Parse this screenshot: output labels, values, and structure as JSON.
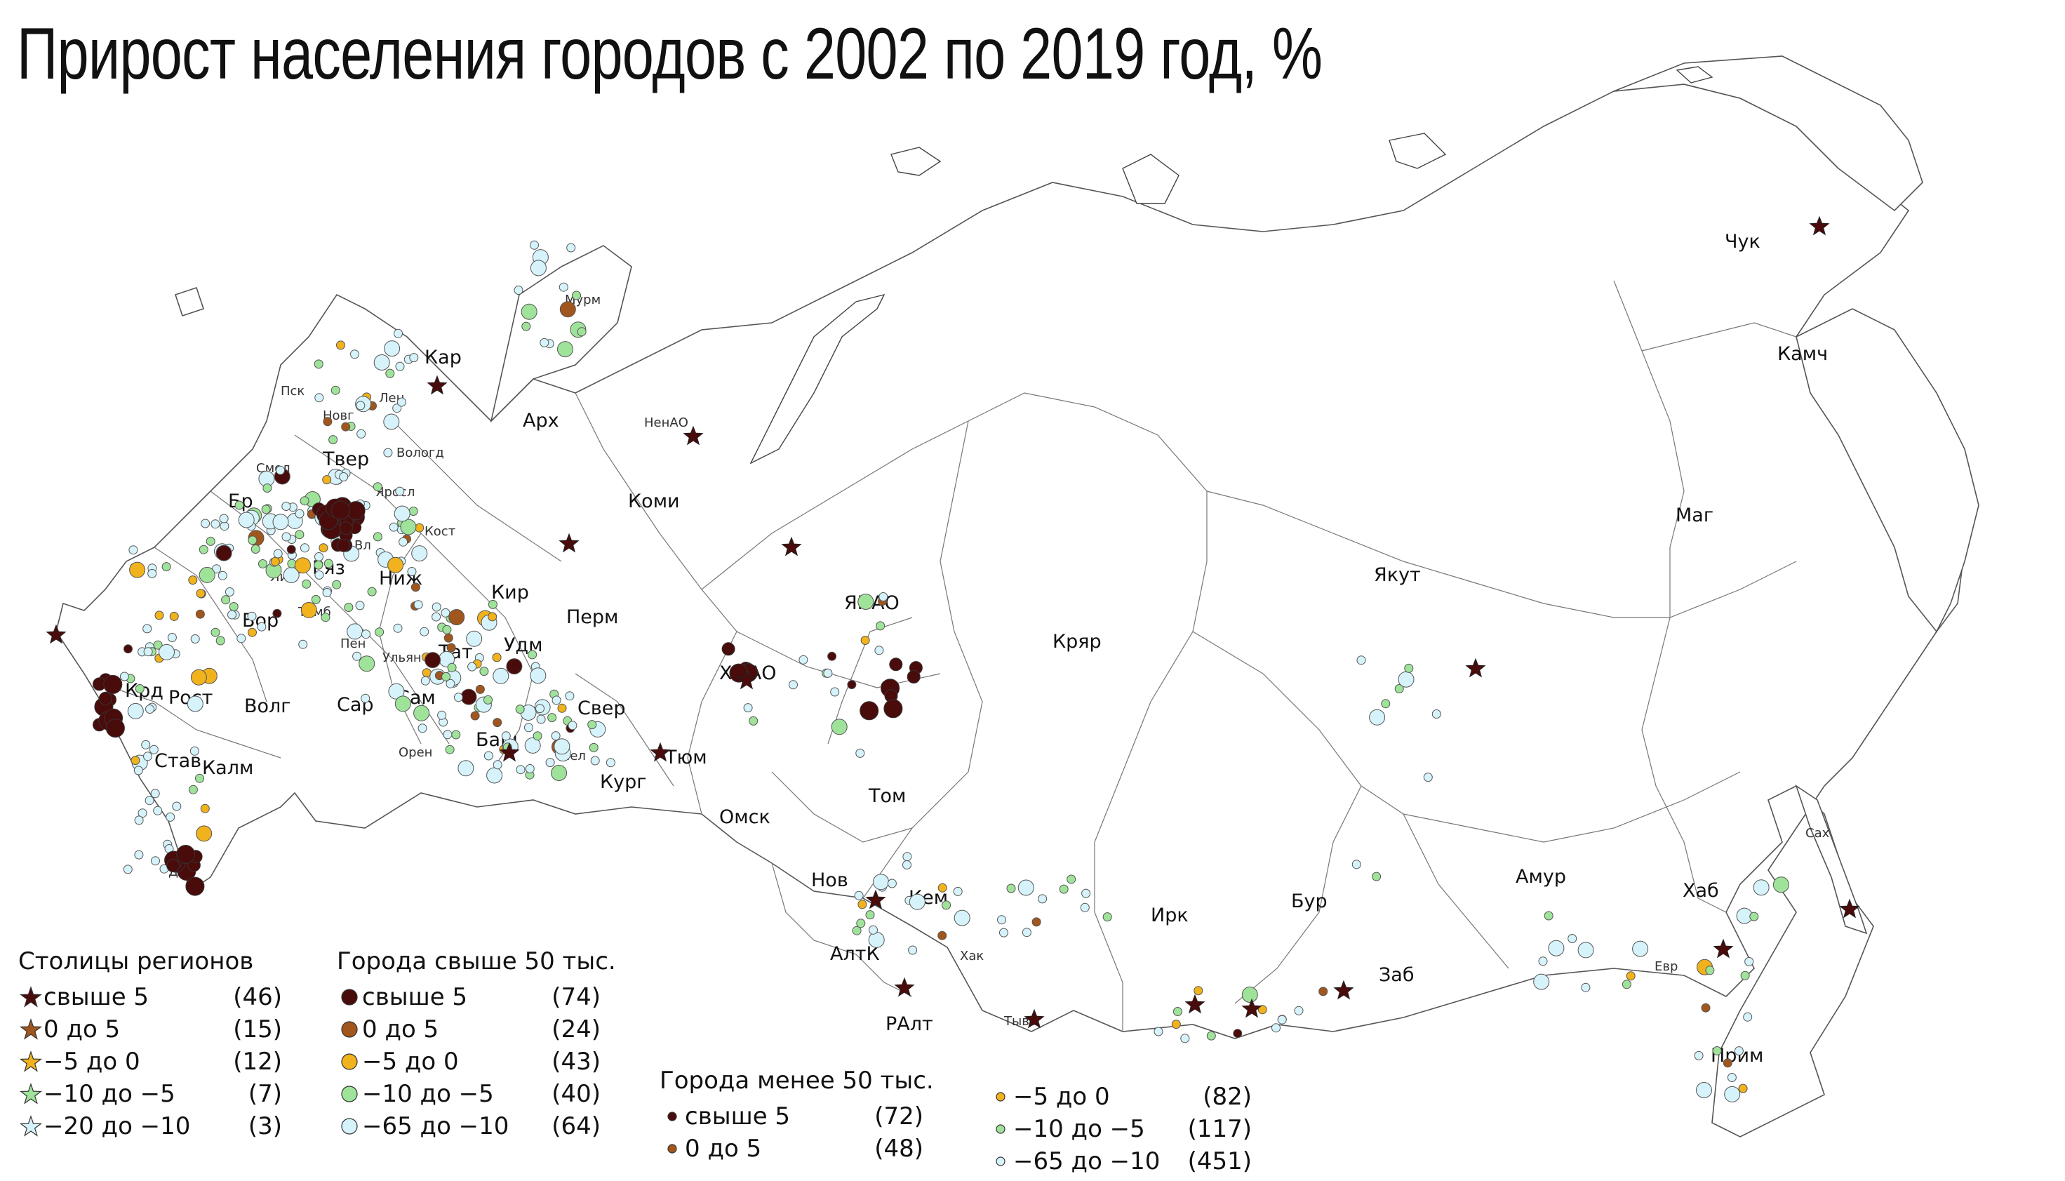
{
  "title": "Прирост населения городов с 2002 по 2019 год, %",
  "colors": {
    "c1": "#4a0b0b",
    "c2": "#a0561c",
    "c3": "#f0b21d",
    "c4": "#9fe39a",
    "c5": "#d6f3fb"
  },
  "regions": [
    {
      "label": "Мурм"
    },
    {
      "label": "Кар"
    },
    {
      "label": "Лен"
    },
    {
      "label": "Пск"
    },
    {
      "label": "Новг"
    },
    {
      "label": "Арх"
    },
    {
      "label": "НенАО"
    },
    {
      "label": "Вологд"
    },
    {
      "label": "Твер"
    },
    {
      "label": "Смол"
    },
    {
      "label": "Яросл"
    },
    {
      "label": "Кост"
    },
    {
      "label": "Бр"
    },
    {
      "label": "Ряз"
    },
    {
      "label": "Вл"
    },
    {
      "label": "Ниж"
    },
    {
      "label": "Кир"
    },
    {
      "label": "Коми"
    },
    {
      "label": "Лип"
    },
    {
      "label": "Тамб"
    },
    {
      "label": "Вор"
    },
    {
      "label": "Пен"
    },
    {
      "label": "Ульян"
    },
    {
      "label": "Тат"
    },
    {
      "label": "Удм"
    },
    {
      "label": "Перм"
    },
    {
      "label": "Сам"
    },
    {
      "label": "Сар"
    },
    {
      "label": "Крд"
    },
    {
      "label": "Рост"
    },
    {
      "label": "Волг"
    },
    {
      "label": "Став"
    },
    {
      "label": "Калм"
    },
    {
      "label": "Даг"
    },
    {
      "label": "Баш"
    },
    {
      "label": "Свер"
    },
    {
      "label": "Орен"
    },
    {
      "label": "Чел"
    },
    {
      "label": "Кург"
    },
    {
      "label": "Тюм"
    },
    {
      "label": "ХМАО"
    },
    {
      "label": "ЯНАО"
    },
    {
      "label": "Омск"
    },
    {
      "label": "Том"
    },
    {
      "label": "Нов"
    },
    {
      "label": "Кем"
    },
    {
      "label": "АлтК"
    },
    {
      "label": "РАлт"
    },
    {
      "label": "Хак"
    },
    {
      "label": "Тыва"
    },
    {
      "label": "Кряр"
    },
    {
      "label": "Ирк"
    },
    {
      "label": "Бур"
    },
    {
      "label": "Заб"
    },
    {
      "label": "Якут"
    },
    {
      "label": "Амур"
    },
    {
      "label": "Евр"
    },
    {
      "label": "Хаб"
    },
    {
      "label": "Прим"
    },
    {
      "label": "Сах"
    },
    {
      "label": "Маг"
    },
    {
      "label": "Камч"
    },
    {
      "label": "Чук"
    }
  ],
  "legend_capitals": {
    "title": "Столицы регионов",
    "items": [
      {
        "range": "свыше 5",
        "count": "(46)",
        "color": "#4a0b0b"
      },
      {
        "range": "0 до 5",
        "count": "(15)",
        "color": "#a0561c"
      },
      {
        "range": "−5 до 0",
        "count": "(12)",
        "color": "#f0b21d"
      },
      {
        "range": "−10 до −5",
        "count": "(7)",
        "color": "#9fe39a"
      },
      {
        "range": "−20 до −10",
        "count": "(3)",
        "color": "#d6f3fb"
      }
    ]
  },
  "legend_big": {
    "title": "Города свыше 50 тыс.",
    "items": [
      {
        "range": "свыше 5",
        "count": "(74)",
        "color": "#4a0b0b"
      },
      {
        "range": "0 до 5",
        "count": "(24)",
        "color": "#a0561c"
      },
      {
        "range": "−5 до 0",
        "count": "(43)",
        "color": "#f0b21d"
      },
      {
        "range": "−10 до −5",
        "count": "(40)",
        "color": "#9fe39a"
      },
      {
        "range": "−65 до −10",
        "count": "(64)",
        "color": "#d6f3fb"
      }
    ]
  },
  "legend_small": {
    "title": "Города менее 50 тыс.",
    "items": [
      {
        "range": "свыше 5",
        "count": "(72)",
        "color": "#4a0b0b"
      },
      {
        "range": "0 до 5",
        "count": "(48)",
        "color": "#a0561c"
      },
      {
        "range": "−5 до 0",
        "count": "(82)",
        "color": "#f0b21d"
      },
      {
        "range": "−10 до −5",
        "count": "(117)",
        "color": "#9fe39a"
      },
      {
        "range": "−65 до −10",
        "count": "(451)",
        "color": "#d6f3fb"
      }
    ]
  }
}
